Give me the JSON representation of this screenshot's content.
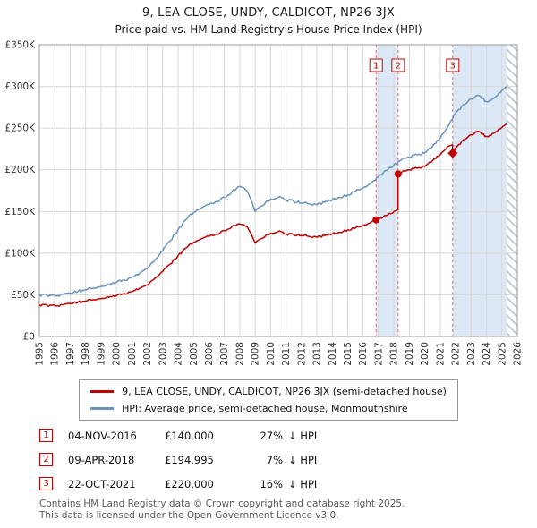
{
  "chart_data": {
    "type": "line",
    "title": "9, LEA CLOSE, UNDY, CALDICOT, NP26 3JX",
    "subtitle": "Price paid vs. HM Land Registry's House Price Index (HPI)",
    "x_range": [
      1995,
      2026
    ],
    "y_range_k": [
      0,
      350
    ],
    "y_unit": "GBP (thousands)",
    "grid": true,
    "legend_position": "bottom",
    "x_ticks": [
      1995,
      1996,
      1997,
      1998,
      1999,
      2000,
      2001,
      2002,
      2003,
      2004,
      2005,
      2006,
      2007,
      2008,
      2009,
      2010,
      2011,
      2012,
      2013,
      2014,
      2015,
      2016,
      2017,
      2018,
      2019,
      2020,
      2021,
      2022,
      2023,
      2024,
      2025,
      2026
    ],
    "y_ticks_k": [
      0,
      50,
      100,
      150,
      200,
      250,
      300,
      350
    ],
    "y_tick_labels": [
      "£0",
      "£50K",
      "£100K",
      "£150K",
      "£200K",
      "£250K",
      "£300K",
      "£350K"
    ],
    "series": [
      {
        "name": "9, LEA CLOSE, UNDY, CALDICOT, NP26 3JX (semi-detached house)",
        "color": "#c00000",
        "points_k": [
          [
            1995.0,
            38
          ],
          [
            1995.5,
            37.5
          ],
          [
            1996.0,
            37
          ],
          [
            1996.5,
            38
          ],
          [
            1997.0,
            39.5
          ],
          [
            1997.5,
            41
          ],
          [
            1998.0,
            42.5
          ],
          [
            1998.5,
            44
          ],
          [
            1999.0,
            45.5
          ],
          [
            1999.5,
            47
          ],
          [
            2000.0,
            49
          ],
          [
            2000.5,
            51.5
          ],
          [
            2001.0,
            54
          ],
          [
            2001.5,
            58
          ],
          [
            2002.0,
            62
          ],
          [
            2002.5,
            70
          ],
          [
            2003.0,
            78
          ],
          [
            2003.5,
            87
          ],
          [
            2004.0,
            97
          ],
          [
            2004.5,
            106
          ],
          [
            2005.0,
            113
          ],
          [
            2005.5,
            117
          ],
          [
            2006.0,
            120
          ],
          [
            2006.5,
            123
          ],
          [
            2007.0,
            127
          ],
          [
            2007.5,
            132
          ],
          [
            2008.0,
            135
          ],
          [
            2008.5,
            131
          ],
          [
            2009.0,
            112
          ],
          [
            2009.5,
            118
          ],
          [
            2010.0,
            124
          ],
          [
            2010.5,
            126
          ],
          [
            2011.0,
            123
          ],
          [
            2011.5,
            122
          ],
          [
            2012.0,
            121
          ],
          [
            2012.5,
            120
          ],
          [
            2013.0,
            119
          ],
          [
            2013.5,
            121
          ],
          [
            2014.0,
            123
          ],
          [
            2014.5,
            125
          ],
          [
            2015.0,
            128
          ],
          [
            2015.5,
            130
          ],
          [
            2016.0,
            133
          ],
          [
            2016.5,
            137
          ],
          [
            2016.84,
            140
          ],
          [
            2017.0,
            141
          ],
          [
            2017.5,
            145
          ],
          [
            2018.0,
            150
          ],
          [
            2018.26,
            152
          ],
          [
            2018.27,
            194.995
          ],
          [
            2018.5,
            197
          ],
          [
            2019.0,
            200
          ],
          [
            2019.5,
            202
          ],
          [
            2020.0,
            204
          ],
          [
            2020.5,
            211
          ],
          [
            2021.0,
            218
          ],
          [
            2021.5,
            228
          ],
          [
            2021.8,
            230
          ],
          [
            2021.81,
            220
          ],
          [
            2022.0,
            226
          ],
          [
            2022.5,
            236
          ],
          [
            2023.0,
            242
          ],
          [
            2023.5,
            246
          ],
          [
            2024.0,
            240
          ],
          [
            2024.5,
            244
          ],
          [
            2025.0,
            251
          ],
          [
            2025.3,
            255
          ]
        ]
      },
      {
        "name": "HPI: Average price, semi-detached house, Monmouthshire",
        "color": "#6a93bb",
        "points_k": [
          [
            1995.0,
            50
          ],
          [
            1995.5,
            49.5
          ],
          [
            1996.0,
            49
          ],
          [
            1996.5,
            50.5
          ],
          [
            1997.0,
            52
          ],
          [
            1997.5,
            54
          ],
          [
            1998.0,
            56
          ],
          [
            1998.5,
            58
          ],
          [
            1999.0,
            60
          ],
          [
            1999.5,
            62
          ],
          [
            2000.0,
            65
          ],
          [
            2000.5,
            68
          ],
          [
            2001.0,
            71
          ],
          [
            2001.5,
            76
          ],
          [
            2002.0,
            82
          ],
          [
            2002.5,
            92
          ],
          [
            2003.0,
            103
          ],
          [
            2003.5,
            115
          ],
          [
            2004.0,
            128
          ],
          [
            2004.5,
            140
          ],
          [
            2005.0,
            149
          ],
          [
            2005.5,
            154
          ],
          [
            2006.0,
            158
          ],
          [
            2006.5,
            162
          ],
          [
            2007.0,
            167
          ],
          [
            2007.5,
            174
          ],
          [
            2008.0,
            180
          ],
          [
            2008.5,
            174
          ],
          [
            2009.0,
            150
          ],
          [
            2009.5,
            157
          ],
          [
            2010.0,
            165
          ],
          [
            2010.5,
            167
          ],
          [
            2011.0,
            164
          ],
          [
            2011.5,
            162
          ],
          [
            2012.0,
            160
          ],
          [
            2012.5,
            159
          ],
          [
            2013.0,
            158
          ],
          [
            2013.5,
            161
          ],
          [
            2014.0,
            164
          ],
          [
            2014.5,
            167
          ],
          [
            2015.0,
            170
          ],
          [
            2015.5,
            174
          ],
          [
            2016.0,
            178
          ],
          [
            2016.5,
            184
          ],
          [
            2017.0,
            192
          ],
          [
            2017.5,
            199
          ],
          [
            2018.0,
            206
          ],
          [
            2018.5,
            212
          ],
          [
            2019.0,
            215
          ],
          [
            2019.5,
            218
          ],
          [
            2020.0,
            220
          ],
          [
            2020.5,
            228
          ],
          [
            2021.0,
            238
          ],
          [
            2021.5,
            252
          ],
          [
            2022.0,
            268
          ],
          [
            2022.5,
            278
          ],
          [
            2023.0,
            285
          ],
          [
            2023.5,
            289
          ],
          [
            2024.0,
            282
          ],
          [
            2024.5,
            286
          ],
          [
            2025.0,
            295
          ],
          [
            2025.3,
            300
          ]
        ]
      }
    ],
    "sales": [
      {
        "n": "1",
        "date": "04-NOV-2016",
        "price_label": "£140,000",
        "pct": "27%",
        "suffix": "↓ HPI",
        "x": 2016.84,
        "y_k": 140,
        "marker": "circle"
      },
      {
        "n": "2",
        "date": "09-APR-2018",
        "price_label": "£194,995",
        "pct": "7%",
        "suffix": "↓ HPI",
        "x": 2018.27,
        "y_k": 194.995,
        "marker": "circle"
      },
      {
        "n": "3",
        "date": "22-OCT-2021",
        "price_label": "£220,000",
        "pct": "16%",
        "suffix": "↓ HPI",
        "x": 2021.81,
        "y_k": 220,
        "marker": "diamond"
      }
    ],
    "bands": {
      "color": "#dde8f6",
      "ranges": [
        [
          2016.84,
          2018.27
        ],
        [
          2021.81,
          2025.3
        ]
      ]
    },
    "future_hatch": {
      "from": 2025.3,
      "to": 2026
    },
    "colors": {
      "sale_dash_line": "#cf6f6f",
      "grid": "#d8d8d8",
      "plot_border": "#999999",
      "hatch_stripe": "#c4cdd9",
      "tick_text": "#333333"
    }
  },
  "footer": {
    "line1": "Contains HM Land Registry data © Crown copyright and database right 2025.",
    "line2": "This data is licensed under the Open Government Licence v3.0."
  }
}
